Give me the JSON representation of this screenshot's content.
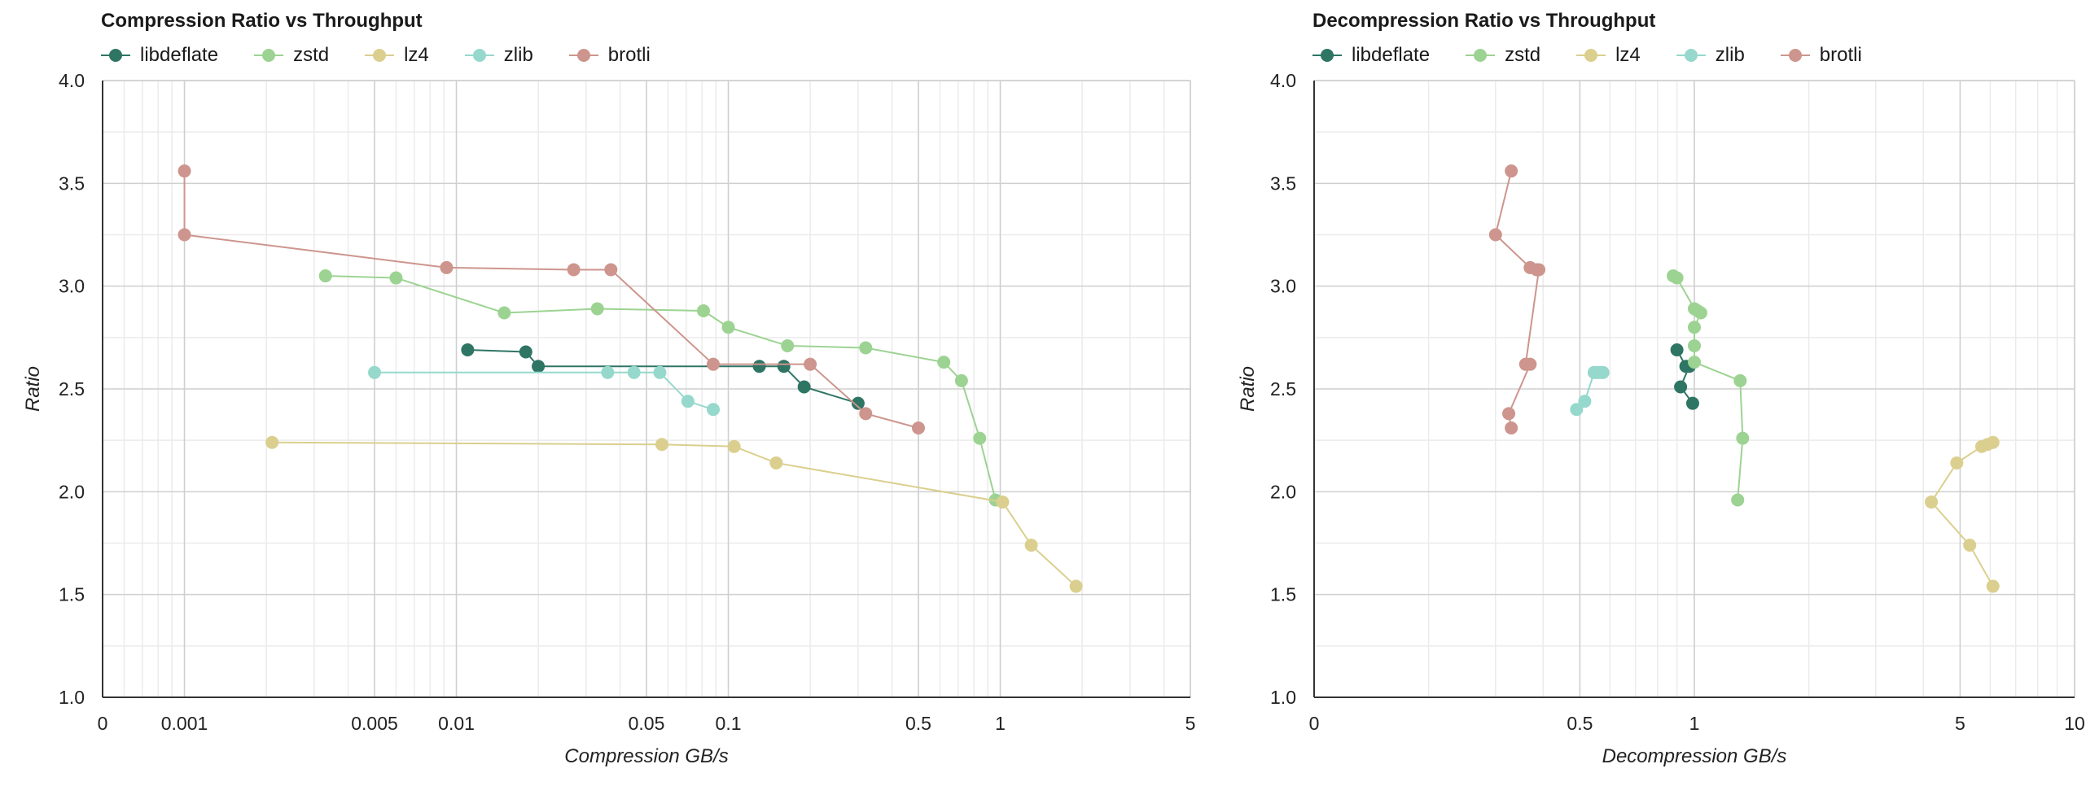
{
  "chart_data": [
    {
      "type": "scatter",
      "title": "Compression Ratio vs Throughput",
      "xlabel": "Compression GB/s",
      "ylabel": "Ratio",
      "x_scale": "log",
      "x_ticks": [
        "0",
        "0.001",
        "0.005",
        "0.01",
        "0.05",
        "0.1",
        "0.5",
        "1",
        "5"
      ],
      "x_tick_values": [
        0.0005,
        0.001,
        0.005,
        0.01,
        0.05,
        0.1,
        0.5,
        1,
        5
      ],
      "xlim": [
        0.0005,
        5
      ],
      "y_ticks": [
        "1.0",
        "1.5",
        "2.0",
        "2.5",
        "3.0",
        "3.5",
        "4.0"
      ],
      "ylim": [
        1.0,
        4.0
      ],
      "grid": true,
      "legend_position": "top-left",
      "series": [
        {
          "name": "libdeflate",
          "color": "#2e7564",
          "points": [
            [
              0.011,
              2.69
            ],
            [
              0.018,
              2.68
            ],
            [
              0.02,
              2.61
            ],
            [
              0.13,
              2.61
            ],
            [
              0.16,
              2.61
            ],
            [
              0.19,
              2.51
            ],
            [
              0.3,
              2.43
            ]
          ]
        },
        {
          "name": "zstd",
          "color": "#9cd392",
          "points": [
            [
              0.0033,
              3.05
            ],
            [
              0.006,
              3.04
            ],
            [
              0.015,
              2.87
            ],
            [
              0.033,
              2.89
            ],
            [
              0.081,
              2.88
            ],
            [
              0.1,
              2.8
            ],
            [
              0.165,
              2.71
            ],
            [
              0.32,
              2.7
            ],
            [
              0.62,
              2.63
            ],
            [
              0.72,
              2.54
            ],
            [
              0.84,
              2.26
            ],
            [
              0.96,
              1.96
            ]
          ]
        },
        {
          "name": "lz4",
          "color": "#dacf8e",
          "points": [
            [
              0.0021,
              2.24
            ],
            [
              0.057,
              2.23
            ],
            [
              0.105,
              2.22
            ],
            [
              0.15,
              2.14
            ],
            [
              1.02,
              1.95
            ],
            [
              1.3,
              1.74
            ],
            [
              1.9,
              1.54
            ]
          ]
        },
        {
          "name": "zlib",
          "color": "#96d8cc",
          "points": [
            [
              0.005,
              2.58
            ],
            [
              0.036,
              2.58
            ],
            [
              0.045,
              2.58
            ],
            [
              0.056,
              2.58
            ],
            [
              0.071,
              2.44
            ],
            [
              0.088,
              2.4
            ]
          ]
        },
        {
          "name": "brotli",
          "color": "#cd958d",
          "points": [
            [
              0.001,
              3.56
            ],
            [
              0.001,
              3.25
            ],
            [
              0.0092,
              3.09
            ],
            [
              0.027,
              3.08
            ],
            [
              0.037,
              3.08
            ],
            [
              0.088,
              2.62
            ],
            [
              0.2,
              2.62
            ],
            [
              0.32,
              2.38
            ],
            [
              0.5,
              2.31
            ]
          ]
        }
      ]
    },
    {
      "type": "scatter",
      "title": "Decompression Ratio vs Throughput",
      "xlabel": "Decompression GB/s",
      "ylabel": "Ratio",
      "x_scale": "log",
      "x_ticks": [
        "0",
        "0.5",
        "1",
        "5",
        "10"
      ],
      "x_tick_values": [
        0.1,
        0.5,
        1,
        5,
        10
      ],
      "xlim": [
        0.1,
        10
      ],
      "y_ticks": [
        "1.0",
        "1.5",
        "2.0",
        "2.5",
        "3.0",
        "3.5",
        "4.0"
      ],
      "ylim": [
        1.0,
        4.0
      ],
      "grid": true,
      "legend_position": "top-left",
      "series": [
        {
          "name": "libdeflate",
          "color": "#2e7564",
          "points": [
            [
              0.9,
              2.69
            ],
            [
              0.95,
              2.61
            ],
            [
              0.97,
              2.61
            ],
            [
              0.92,
              2.51
            ],
            [
              0.99,
              2.43
            ]
          ]
        },
        {
          "name": "zstd",
          "color": "#9cd392",
          "points": [
            [
              0.88,
              3.05
            ],
            [
              0.9,
              3.04
            ],
            [
              1.0,
              2.89
            ],
            [
              1.02,
              2.88
            ],
            [
              1.04,
              2.87
            ],
            [
              1.0,
              2.8
            ],
            [
              1.0,
              2.71
            ],
            [
              1.0,
              2.63
            ],
            [
              1.32,
              2.54
            ],
            [
              1.34,
              2.26
            ],
            [
              1.3,
              1.96
            ]
          ]
        },
        {
          "name": "lz4",
          "color": "#dacf8e",
          "points": [
            [
              6.1,
              2.24
            ],
            [
              5.9,
              2.23
            ],
            [
              5.7,
              2.22
            ],
            [
              4.9,
              2.14
            ],
            [
              4.2,
              1.95
            ],
            [
              5.3,
              1.74
            ],
            [
              6.1,
              1.54
            ]
          ]
        },
        {
          "name": "zlib",
          "color": "#96d8cc",
          "points": [
            [
              0.555,
              2.58
            ],
            [
              0.565,
              2.58
            ],
            [
              0.575,
              2.58
            ],
            [
              0.545,
              2.58
            ],
            [
              0.515,
              2.44
            ],
            [
              0.49,
              2.4
            ]
          ]
        },
        {
          "name": "brotli",
          "color": "#cd958d",
          "points": [
            [
              0.33,
              3.56
            ],
            [
              0.3,
              3.25
            ],
            [
              0.37,
              3.09
            ],
            [
              0.385,
              3.08
            ],
            [
              0.39,
              3.08
            ],
            [
              0.36,
              2.62
            ],
            [
              0.37,
              2.62
            ],
            [
              0.325,
              2.38
            ],
            [
              0.33,
              2.31
            ]
          ]
        }
      ]
    }
  ]
}
